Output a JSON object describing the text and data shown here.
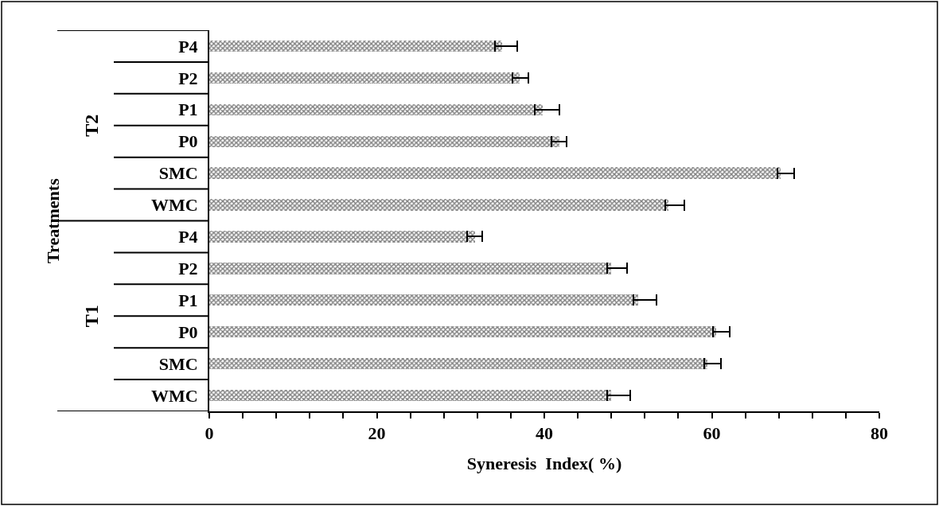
{
  "chart_data": {
    "type": "bar",
    "orientation": "horizontal",
    "xlabel": "Syneresis  Index( %)",
    "categories": [
      "P4",
      "P2",
      "P1",
      "P0",
      "SMC",
      "WMC",
      "P4",
      "P2",
      "P1",
      "P0",
      "SMC",
      "WMC"
    ],
    "annotations": [
      "Treatments",
      "T2",
      "T1"
    ],
    "series": [
      {
        "color": "#000000",
        "values": [
          35.0,
          37.1,
          39.8,
          41.8,
          68.2,
          54.8,
          31.7,
          48.0,
          51.2,
          60.5,
          59.5,
          48.0
        ],
        "errors": [
          [
            34.1,
            36.8
          ],
          [
            36.2,
            38.1
          ],
          [
            38.9,
            41.8
          ],
          [
            40.9,
            42.7
          ],
          [
            67.8,
            69.8
          ],
          [
            54.4,
            56.7
          ],
          [
            30.8,
            32.6
          ],
          [
            47.5,
            49.9
          ],
          [
            50.6,
            53.4
          ],
          [
            60.1,
            62.1
          ],
          [
            59.1,
            61.1
          ],
          [
            47.5,
            50.3
          ]
        ]
      }
    ],
    "xlim": [
      0,
      80
    ],
    "xticks": [
      0,
      {
        "value": 4,
        "label": null
      },
      {
        "value": 8,
        "label": null
      },
      {
        "value": 12,
        "label": null
      },
      {
        "value": 16,
        "label": null
      },
      20,
      {
        "value": 24,
        "label": null
      },
      {
        "value": 28,
        "label": null
      },
      {
        "value": 32,
        "label": null
      },
      {
        "value": 36,
        "label": null
      },
      40,
      {
        "value": 44,
        "label": null
      },
      {
        "value": 48,
        "label": null
      },
      {
        "value": 52,
        "label": null
      },
      {
        "value": 56,
        "label": null
      },
      60,
      {
        "value": 64,
        "label": null
      },
      {
        "value": 68,
        "label": null
      },
      {
        "value": 72,
        "label": null
      },
      {
        "value": 76,
        "label": null
      },
      80
    ]
  }
}
